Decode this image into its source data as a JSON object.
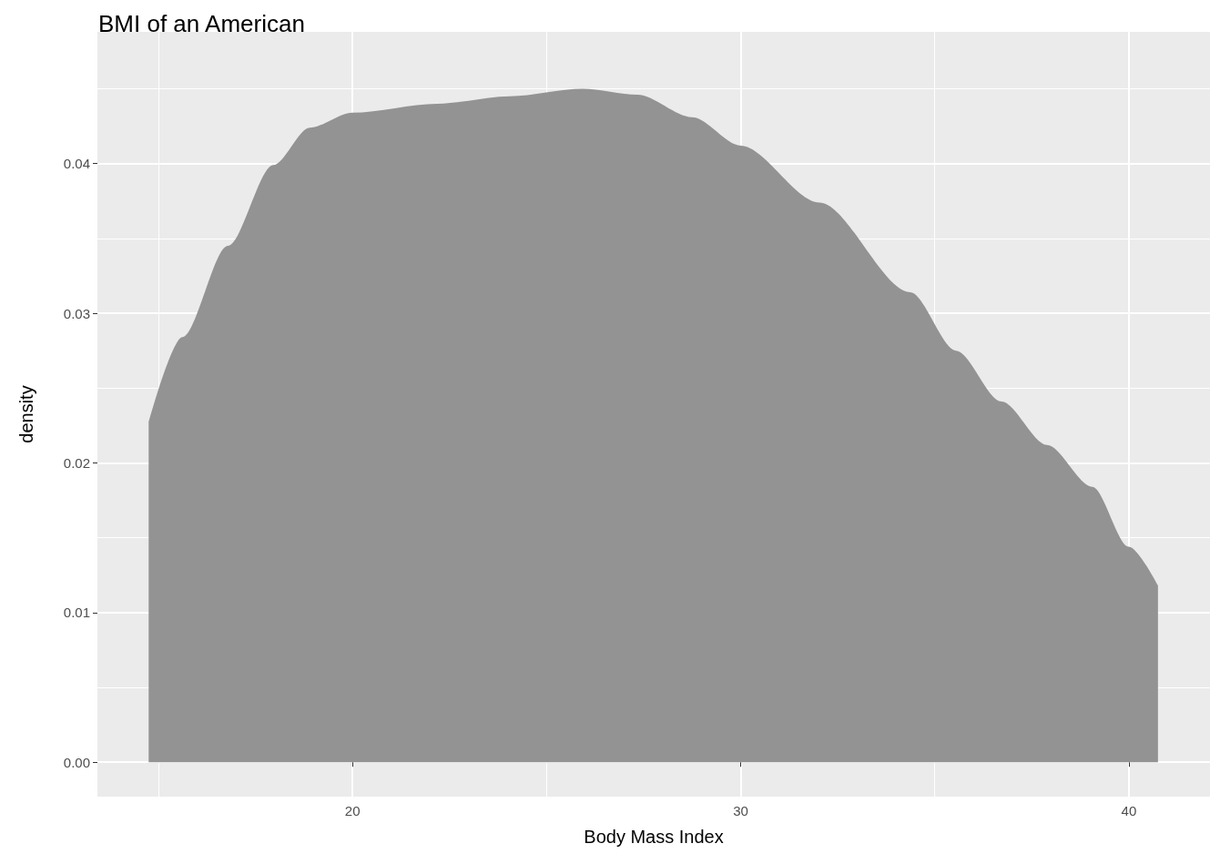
{
  "chart_data": {
    "type": "area",
    "title": "BMI of an American",
    "xlabel": "Body Mass Index",
    "ylabel": "density",
    "x": [
      14.75,
      15.62,
      16.79,
      17.96,
      18.9,
      20,
      22.18,
      24.06,
      25.93,
      27.34,
      28.75,
      30,
      32.03,
      34.37,
      35.55,
      36.72,
      37.89,
      39.06,
      40,
      40.75
    ],
    "series": [
      {
        "color": "#939393",
        "values": [
          0.0227,
          0.0284,
          0.0345,
          0.0399,
          0.0424,
          0.0434,
          0.044,
          0.0445,
          0.045,
          0.0446,
          0.0431,
          0.0412,
          0.0374,
          0.0314,
          0.0275,
          0.0241,
          0.0212,
          0.0184,
          0.0144,
          0.0118
        ]
      }
    ],
    "xlim": [
      13.43,
      42.09
    ],
    "xticks": [
      20,
      30,
      40
    ],
    "ylim": [
      -0.0023,
      0.0488
    ],
    "yticks": [
      {
        "value": 0,
        "label": "0.00"
      },
      {
        "value": 0.01,
        "label": "0.01"
      },
      {
        "value": 0.02,
        "label": "0.02"
      },
      {
        "value": 0.03,
        "label": "0.03"
      },
      {
        "value": 0.04,
        "label": "0.04"
      }
    ],
    "grid": true
  }
}
